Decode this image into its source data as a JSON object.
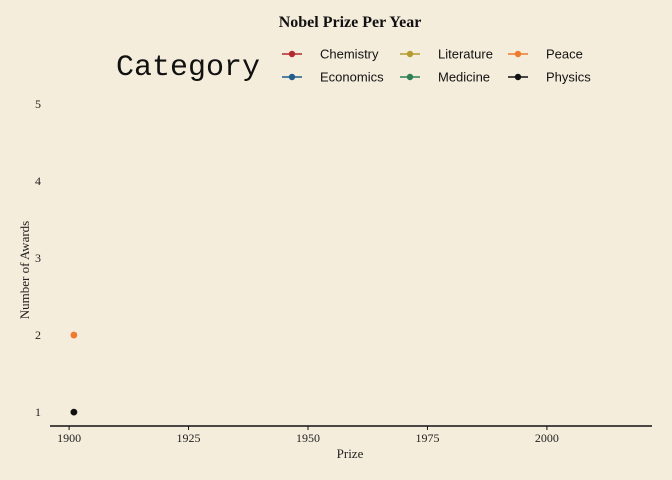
{
  "chart_data": {
    "type": "scatter",
    "title": "Nobel Prize Per Year",
    "xlabel": "Prize",
    "ylabel": "Number of Awards",
    "xlim": [
      1896,
      2022
    ],
    "ylim": [
      0.82,
      5.18
    ],
    "xticks": [
      1900,
      1925,
      1950,
      1975,
      2000
    ],
    "yticks": [
      1,
      2,
      3,
      4,
      5
    ],
    "grid": false,
    "legend": {
      "title": "Category",
      "placement": "top"
    },
    "series": [
      {
        "name": "Chemistry",
        "color": "#b5282c",
        "points": []
      },
      {
        "name": "Economics",
        "color": "#1f5d8c",
        "points": []
      },
      {
        "name": "Literature",
        "color": "#b59a2f",
        "points": []
      },
      {
        "name": "Medicine",
        "color": "#2f7f55",
        "points": []
      },
      {
        "name": "Peace",
        "color": "#f07a30",
        "points": [
          [
            1901,
            2
          ]
        ]
      },
      {
        "name": "Physics",
        "color": "#111111",
        "points": [
          [
            1901,
            1
          ]
        ]
      }
    ]
  }
}
